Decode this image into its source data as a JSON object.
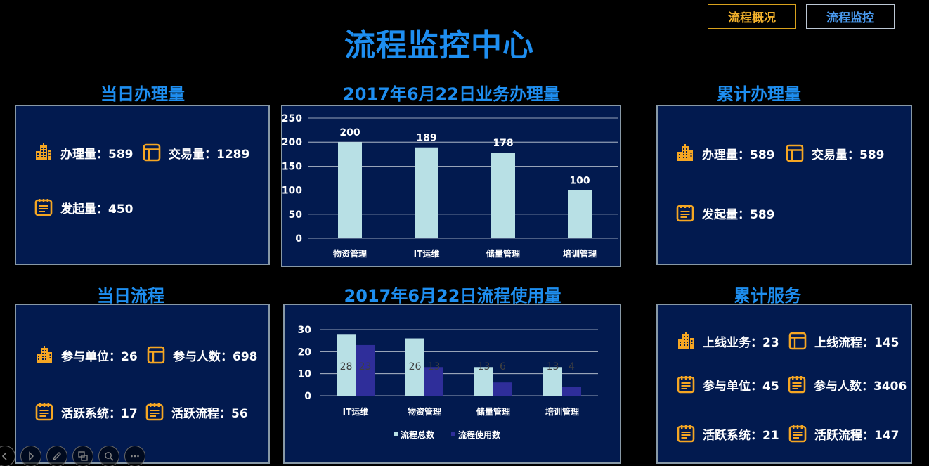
{
  "header": {
    "title": "流程监控中心",
    "nav": {
      "overview": "流程概况",
      "monitor": "流程监控"
    }
  },
  "daily_volume": {
    "title": "当日办理量",
    "handle": "办理量：589",
    "trade": "交易量：1289",
    "initiate": "发起量：450"
  },
  "business_chart": {
    "title": "2017年6月22日业务办理量"
  },
  "cumulative_volume": {
    "title": "累计办理量",
    "handle": "办理量：589",
    "trade": "交易量：589",
    "initiate": "发起量：589"
  },
  "daily_process": {
    "title": "当日流程",
    "units": "参与单位：26",
    "people": "参与人数：698",
    "systems": "活跃系统：17",
    "processes": "活跃流程：56"
  },
  "usage_chart": {
    "title": "2017年6月22日流程使用量"
  },
  "cumulative_service": {
    "title": "累计服务",
    "online_business": "上线业务：23",
    "online_process": "上线流程：145",
    "units": "参与单位：45",
    "people": "参与人数：3406",
    "systems": "活跃系统：21",
    "processes": "活跃流程：147"
  },
  "colors": {
    "accent_blue": "#1e8ef0",
    "panel_bg": "#021a4f",
    "icon_orange": "#f5a623",
    "bar_light": "#b8e0e5",
    "bar_dark": "#2f2e9a"
  },
  "chart_data": [
    {
      "type": "bar",
      "categories": [
        "物资管理",
        "IT运维",
        "储量管理",
        "培训管理"
      ],
      "values": [
        200,
        189,
        178,
        100
      ],
      "ylim": [
        0,
        250
      ],
      "yticks": [
        0,
        50,
        100,
        150,
        200,
        250
      ],
      "grid": true
    },
    {
      "type": "bar",
      "categories": [
        "IT运维",
        "物资管理",
        "储量管理",
        "培训管理"
      ],
      "series": [
        {
          "name": "流程总数",
          "values": [
            28,
            26,
            13,
            13
          ]
        },
        {
          "name": "流程使用数",
          "values": [
            23,
            13,
            6,
            4
          ]
        }
      ],
      "ylim": [
        0,
        30
      ],
      "yticks": [
        0,
        10,
        20,
        30
      ],
      "grid": true,
      "legend": "bottom"
    }
  ]
}
